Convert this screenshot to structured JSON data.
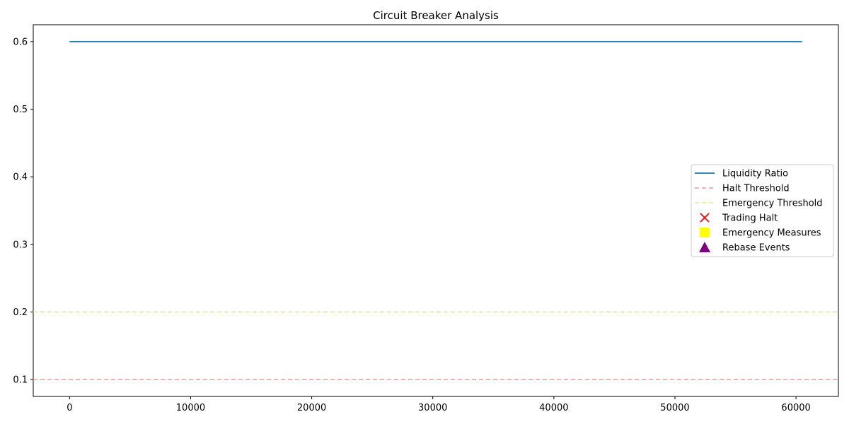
{
  "chart_data": {
    "type": "line",
    "title": "Circuit Breaker Analysis",
    "xlabel": "",
    "ylabel": "",
    "xlim": [
      -3000,
      63500
    ],
    "ylim": [
      0.075,
      0.625
    ],
    "x_ticks": [
      0,
      10000,
      20000,
      30000,
      40000,
      50000,
      60000
    ],
    "x_tick_labels": [
      "0",
      "10000",
      "20000",
      "30000",
      "40000",
      "50000",
      "60000"
    ],
    "y_ticks": [
      0.1,
      0.2,
      0.3,
      0.4,
      0.5,
      0.6
    ],
    "y_tick_labels": [
      "0.1",
      "0.2",
      "0.3",
      "0.4",
      "0.5",
      "0.6"
    ],
    "grid": false,
    "legend_position": "center-right",
    "series": [
      {
        "name": "Liquidity Ratio",
        "kind": "line",
        "style": "solid",
        "color": "#1f77b4",
        "x": [
          0,
          60500
        ],
        "y": [
          0.6,
          0.6
        ]
      },
      {
        "name": "Halt Threshold",
        "kind": "hline",
        "style": "dashed",
        "color": "#ff9999",
        "y": 0.1
      },
      {
        "name": "Emergency Threshold",
        "kind": "hline",
        "style": "dashed",
        "color": "#e3e88a",
        "y": 0.2
      },
      {
        "name": "Trading Halt",
        "kind": "marker",
        "marker": "x",
        "color": "#ff0000",
        "x": [],
        "y": []
      },
      {
        "name": "Emergency Measures",
        "kind": "marker",
        "marker": "square",
        "color": "#ffff00",
        "x": [],
        "y": []
      },
      {
        "name": "Rebase Events",
        "kind": "marker",
        "marker": "triangle",
        "color": "#800080",
        "x": [],
        "y": []
      }
    ]
  }
}
